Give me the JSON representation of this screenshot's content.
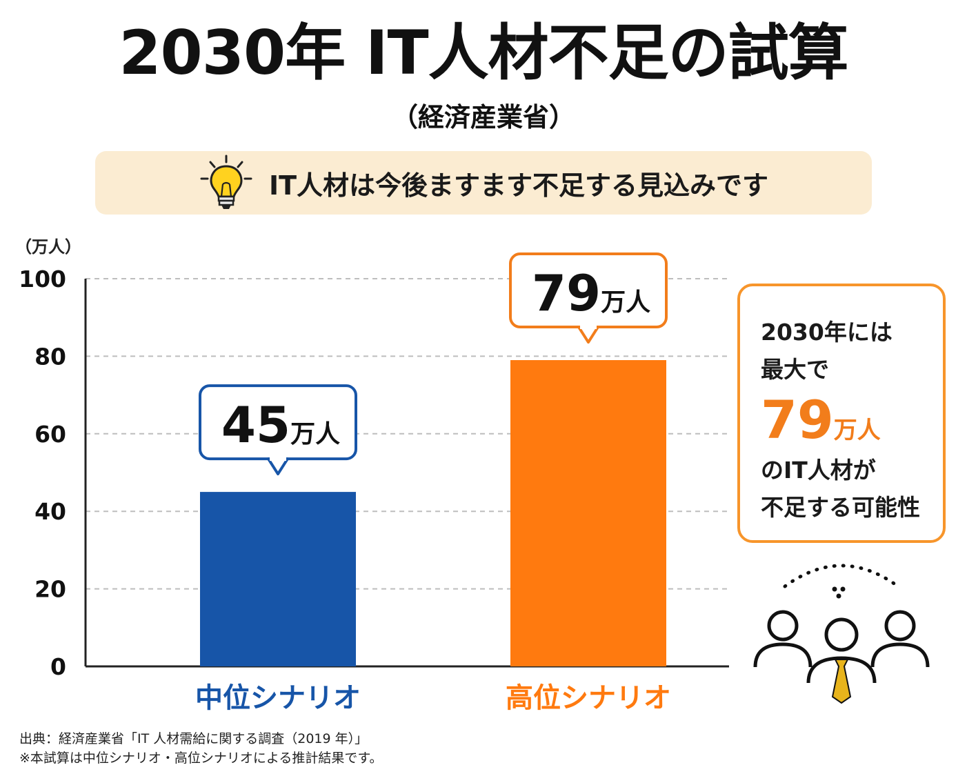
{
  "title": "2030年 IT人材不足の試算",
  "subtitle": "（経済産業省）",
  "banner": {
    "text": "IT人材は今後ますます不足する見込みです",
    "icon": "lightbulb-icon"
  },
  "chart_data": {
    "type": "bar",
    "unit_label": "（万人）",
    "categories": [
      "中位シナリオ",
      "高位シナリオ"
    ],
    "values": [
      45,
      79
    ],
    "data_labels": [
      {
        "value": "45",
        "unit": "万人"
      },
      {
        "value": "79",
        "unit": "万人"
      }
    ],
    "colors": [
      "#1755a8",
      "#ff7a0f"
    ],
    "yticks": [
      "0",
      "20",
      "40",
      "60",
      "80",
      "100"
    ],
    "ylim": [
      0,
      100
    ],
    "grid": true
  },
  "callout": {
    "line1": "2030年には",
    "line2": "最大で",
    "value": "79",
    "unit": "万人",
    "line3": "のIT人材が",
    "line4": "不足する可能性"
  },
  "illustration": {
    "icon": "people-group-icon"
  },
  "source": {
    "line1": "出典：経済産業省「IT 人材需給に関する調査（2019 年）」",
    "line2": "※本試算は中位シナリオ・高位シナリオによる推計結果です。"
  },
  "colors": {
    "accent_orange": "#f27d1b",
    "accent_blue": "#1755a8",
    "banner_bg": "#fbecd2",
    "tie_yellow": "#e8b41c"
  }
}
